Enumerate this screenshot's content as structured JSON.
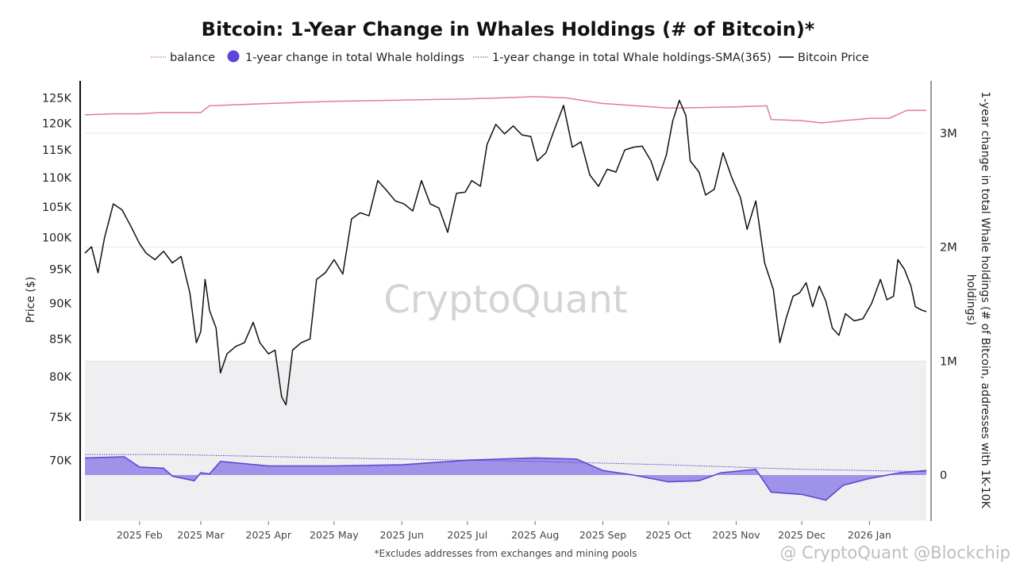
{
  "chart_data": {
    "type": "line",
    "title": "Bitcoin: 1-Year Change in Whales Holdings (# of Bitcoin)*",
    "legend": {
      "placement": "top-center",
      "entries": [
        {
          "label": "balance",
          "style": "dotted-line",
          "color": "#e07aa8"
        },
        {
          "label": "1-year change in total Whale holdings",
          "style": "filled-circle",
          "color": "#5b47d6"
        },
        {
          "label": "1-year change in total Whale holdings-SMA(365)",
          "style": "dotted-line",
          "color": "#4a3fc4"
        },
        {
          "label": "Bitcoin Price",
          "style": "solid-line",
          "color": "#111111"
        }
      ]
    },
    "y_left": {
      "label": "Price ($)",
      "scale": "log",
      "range": [
        70000,
        127000
      ],
      "ticks": [
        {
          "value": 70000,
          "label": "70K"
        },
        {
          "value": 75000,
          "label": "75K"
        },
        {
          "value": 80000,
          "label": "80K"
        },
        {
          "value": 85000,
          "label": "85K"
        },
        {
          "value": 90000,
          "label": "90K"
        },
        {
          "value": 95000,
          "label": "95K"
        },
        {
          "value": 100000,
          "label": "100K"
        },
        {
          "value": 105000,
          "label": "105K"
        },
        {
          "value": 110000,
          "label": "110K"
        },
        {
          "value": 115000,
          "label": "115K"
        },
        {
          "value": 120000,
          "label": "120K"
        },
        {
          "value": 125000,
          "label": "125K"
        }
      ]
    },
    "y_right": {
      "label_lines": [
        "1-year change in total Whale holdings (# of Bitcoin, addresses with 1K-10K",
        "holdings)"
      ],
      "ticks": [
        {
          "value": 0,
          "label": "0"
        },
        {
          "value": 1000000,
          "label": "1M"
        },
        {
          "value": 2000000,
          "label": "2M"
        },
        {
          "value": 3000000,
          "label": "3M"
        }
      ]
    },
    "x_axis": {
      "type": "date",
      "range": [
        "2025-01-07",
        "2026-01-27"
      ],
      "ticks": [
        {
          "date": "2025-02-01",
          "label": "2025 Feb"
        },
        {
          "date": "2025-03-01",
          "label": "2025 Mar"
        },
        {
          "date": "2025-04-01",
          "label": "2025 Apr"
        },
        {
          "date": "2025-05-01",
          "label": "2025 May"
        },
        {
          "date": "2025-06-01",
          "label": "2025 Jun"
        },
        {
          "date": "2025-07-01",
          "label": "2025 Jul"
        },
        {
          "date": "2025-08-01",
          "label": "2025 Aug"
        },
        {
          "date": "2025-09-01",
          "label": "2025 Sep"
        },
        {
          "date": "2025-10-01",
          "label": "2025 Oct"
        },
        {
          "date": "2025-11-01",
          "label": "2025 Nov"
        },
        {
          "date": "2025-12-01",
          "label": "2025 Dec"
        },
        {
          "date": "2026-01-01",
          "label": "2026 Jan"
        }
      ]
    },
    "grid": {
      "horizontal": true,
      "vertical": false
    },
    "shaded_band": {
      "axis": "right",
      "range": [
        -400000,
        1000000
      ],
      "color": "#efeff2"
    },
    "series": [
      {
        "name": "Bitcoin Price",
        "axis": "left",
        "color": "#111111",
        "points": [
          [
            "2025-01-07",
            97500
          ],
          [
            "2025-01-10",
            98500
          ],
          [
            "2025-01-13",
            94500
          ],
          [
            "2025-01-16",
            100000
          ],
          [
            "2025-01-20",
            105500
          ],
          [
            "2025-01-24",
            104500
          ],
          [
            "2025-01-28",
            101800
          ],
          [
            "2025-02-01",
            99000
          ],
          [
            "2025-02-04",
            97500
          ],
          [
            "2025-02-08",
            96500
          ],
          [
            "2025-02-12",
            97800
          ],
          [
            "2025-02-16",
            96000
          ],
          [
            "2025-02-20",
            97000
          ],
          [
            "2025-02-24",
            91500
          ],
          [
            "2025-02-27",
            84500
          ],
          [
            "2025-03-01",
            86000
          ],
          [
            "2025-03-03",
            93500
          ],
          [
            "2025-03-05",
            89000
          ],
          [
            "2025-03-08",
            86500
          ],
          [
            "2025-03-10",
            80500
          ],
          [
            "2025-03-13",
            83000
          ],
          [
            "2025-03-17",
            84000
          ],
          [
            "2025-03-21",
            84500
          ],
          [
            "2025-03-25",
            87300
          ],
          [
            "2025-03-28",
            84500
          ],
          [
            "2025-04-01",
            83000
          ],
          [
            "2025-04-04",
            83500
          ],
          [
            "2025-04-07",
            77500
          ],
          [
            "2025-04-09",
            76500
          ],
          [
            "2025-04-12",
            83500
          ],
          [
            "2025-04-16",
            84500
          ],
          [
            "2025-04-20",
            85000
          ],
          [
            "2025-04-23",
            93500
          ],
          [
            "2025-04-27",
            94500
          ],
          [
            "2025-05-01",
            96500
          ],
          [
            "2025-05-05",
            94300
          ],
          [
            "2025-05-09",
            103000
          ],
          [
            "2025-05-13",
            104000
          ],
          [
            "2025-05-17",
            103500
          ],
          [
            "2025-05-21",
            109500
          ],
          [
            "2025-05-25",
            107800
          ],
          [
            "2025-05-29",
            106000
          ],
          [
            "2025-06-02",
            105500
          ],
          [
            "2025-06-06",
            104300
          ],
          [
            "2025-06-10",
            109500
          ],
          [
            "2025-06-14",
            105500
          ],
          [
            "2025-06-18",
            104800
          ],
          [
            "2025-06-22",
            100800
          ],
          [
            "2025-06-26",
            107300
          ],
          [
            "2025-06-30",
            107500
          ],
          [
            "2025-07-03",
            109500
          ],
          [
            "2025-07-07",
            108500
          ],
          [
            "2025-07-10",
            116000
          ],
          [
            "2025-07-14",
            119800
          ],
          [
            "2025-07-18",
            118000
          ],
          [
            "2025-07-22",
            119500
          ],
          [
            "2025-07-26",
            117800
          ],
          [
            "2025-07-30",
            117500
          ],
          [
            "2025-08-02",
            113000
          ],
          [
            "2025-08-06",
            114500
          ],
          [
            "2025-08-10",
            119000
          ],
          [
            "2025-08-14",
            123500
          ],
          [
            "2025-08-18",
            115500
          ],
          [
            "2025-08-22",
            116500
          ],
          [
            "2025-08-26",
            110500
          ],
          [
            "2025-08-30",
            108500
          ],
          [
            "2025-09-03",
            111500
          ],
          [
            "2025-09-07",
            111000
          ],
          [
            "2025-09-11",
            115000
          ],
          [
            "2025-09-15",
            115500
          ],
          [
            "2025-09-19",
            115700
          ],
          [
            "2025-09-23",
            113000
          ],
          [
            "2025-09-26",
            109500
          ],
          [
            "2025-09-30",
            114000
          ],
          [
            "2025-10-03",
            120500
          ],
          [
            "2025-10-06",
            124500
          ],
          [
            "2025-10-09",
            121500
          ],
          [
            "2025-10-11",
            113000
          ],
          [
            "2025-10-15",
            111000
          ],
          [
            "2025-10-18",
            107000
          ],
          [
            "2025-10-22",
            108000
          ],
          [
            "2025-10-26",
            114500
          ],
          [
            "2025-10-30",
            110000
          ],
          [
            "2025-11-03",
            106500
          ],
          [
            "2025-11-06",
            101300
          ],
          [
            "2025-11-10",
            106000
          ],
          [
            "2025-11-14",
            96000
          ],
          [
            "2025-11-18",
            92000
          ],
          [
            "2025-11-21",
            84500
          ],
          [
            "2025-11-24",
            88000
          ],
          [
            "2025-11-27",
            91000
          ],
          [
            "2025-11-30",
            91500
          ],
          [
            "2025-12-03",
            93000
          ],
          [
            "2025-12-06",
            89500
          ],
          [
            "2025-12-09",
            92500
          ],
          [
            "2025-12-12",
            90300
          ],
          [
            "2025-12-15",
            86500
          ],
          [
            "2025-12-18",
            85500
          ],
          [
            "2025-12-21",
            88500
          ],
          [
            "2025-12-25",
            87500
          ],
          [
            "2025-12-29",
            87800
          ],
          [
            "2026-01-02",
            90000
          ],
          [
            "2026-01-06",
            93500
          ],
          [
            "2026-01-09",
            90500
          ],
          [
            "2026-01-12",
            91000
          ],
          [
            "2026-01-14",
            96500
          ],
          [
            "2026-01-17",
            95000
          ],
          [
            "2026-01-20",
            92500
          ],
          [
            "2026-01-22",
            89500
          ],
          [
            "2026-01-25",
            89000
          ],
          [
            "2026-01-27",
            88800
          ]
        ]
      },
      {
        "name": "balance",
        "axis": "right",
        "color": "#e07aa8",
        "points": [
          [
            "2025-01-07",
            3.16
          ],
          [
            "2025-01-20",
            3.17
          ],
          [
            "2025-02-01",
            3.17
          ],
          [
            "2025-02-10",
            3.18
          ],
          [
            "2025-03-01",
            3.18
          ],
          [
            "2025-03-05",
            3.24
          ],
          [
            "2025-04-01",
            3.26
          ],
          [
            "2025-05-01",
            3.28
          ],
          [
            "2025-06-01",
            3.29
          ],
          [
            "2025-07-01",
            3.3
          ],
          [
            "2025-08-01",
            3.32
          ],
          [
            "2025-08-15",
            3.31
          ],
          [
            "2025-09-01",
            3.26
          ],
          [
            "2025-10-01",
            3.22
          ],
          [
            "2025-11-01",
            3.23
          ],
          [
            "2025-11-15",
            3.24
          ],
          [
            "2025-11-17",
            3.12
          ],
          [
            "2025-12-01",
            3.11
          ],
          [
            "2025-12-10",
            3.09
          ],
          [
            "2025-12-20",
            3.11
          ],
          [
            "2026-01-01",
            3.13
          ],
          [
            "2026-01-10",
            3.13
          ],
          [
            "2026-01-18",
            3.2
          ],
          [
            "2026-01-27",
            3.2
          ]
        ]
      },
      {
        "name": "1-year change in total Whale holdings",
        "axis": "right",
        "color": "#5b47d6",
        "fill": "#8f82e6",
        "points": [
          [
            "2025-01-07",
            0.15
          ],
          [
            "2025-01-25",
            0.16
          ],
          [
            "2025-02-01",
            0.07
          ],
          [
            "2025-02-12",
            0.06
          ],
          [
            "2025-02-16",
            -0.01
          ],
          [
            "2025-02-26",
            -0.05
          ],
          [
            "2025-03-01",
            0.02
          ],
          [
            "2025-03-05",
            0.01
          ],
          [
            "2025-03-10",
            0.12
          ],
          [
            "2025-04-01",
            0.08
          ],
          [
            "2025-05-01",
            0.08
          ],
          [
            "2025-06-01",
            0.09
          ],
          [
            "2025-07-01",
            0.13
          ],
          [
            "2025-08-01",
            0.15
          ],
          [
            "2025-08-20",
            0.14
          ],
          [
            "2025-09-01",
            0.04
          ],
          [
            "2025-09-15",
            0.0
          ],
          [
            "2025-10-01",
            -0.06
          ],
          [
            "2025-10-15",
            -0.05
          ],
          [
            "2025-10-25",
            0.02
          ],
          [
            "2025-11-10",
            0.05
          ],
          [
            "2025-11-17",
            -0.15
          ],
          [
            "2025-12-01",
            -0.17
          ],
          [
            "2025-12-12",
            -0.22
          ],
          [
            "2025-12-20",
            -0.09
          ],
          [
            "2026-01-01",
            -0.03
          ],
          [
            "2026-01-15",
            0.02
          ],
          [
            "2026-01-27",
            0.04
          ]
        ]
      },
      {
        "name": "1-year change in total Whale holdings-SMA(365)",
        "axis": "right",
        "color": "#4a3fc4",
        "points": [
          [
            "2025-01-07",
            0.18
          ],
          [
            "2025-02-15",
            0.18
          ],
          [
            "2025-05-01",
            0.15
          ],
          [
            "2025-08-01",
            0.12
          ],
          [
            "2025-10-01",
            0.09
          ],
          [
            "2025-12-01",
            0.05
          ],
          [
            "2026-01-27",
            0.03
          ]
        ]
      }
    ],
    "footnote": "*Excludes addresses from exchanges and mining pools",
    "watermark": "CryptoQuant",
    "credit": "@ CryptoQuant @Blockchip"
  }
}
